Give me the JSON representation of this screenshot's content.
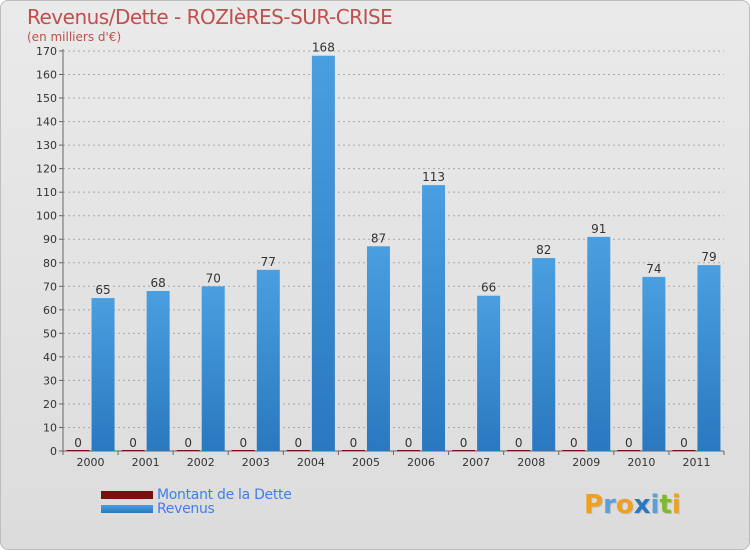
{
  "title": "Revenus/Dette - ROZIèRES-SUR-CRISE",
  "subtitle": "(en milliers d'€)",
  "logo": {
    "chars": [
      "P",
      "r",
      "o",
      "x",
      "i",
      "t",
      "i"
    ]
  },
  "colors": {
    "revenus": "#4a9fe0",
    "revenus_dark": "#2a78c0",
    "dette": "#7a0f0f",
    "axis": "#666666",
    "grid": "#a8a8a8",
    "logo": [
      "#f0a020",
      "#5aa0d8",
      "#f0a020",
      "#2a78c0",
      "#5aa0d8",
      "#80b830",
      "#f0a020"
    ]
  },
  "chart_data": {
    "type": "bar",
    "title": "Revenus/Dette - ROZIèRES-SUR-CRISE",
    "ylabel": "(en milliers d'€)",
    "xlabel": "",
    "ylim": [
      0,
      170
    ],
    "ytick_step": 10,
    "grid": true,
    "legend_position": "bottom-left",
    "categories": [
      "2000",
      "2001",
      "2002",
      "2003",
      "2004",
      "2005",
      "2006",
      "2007",
      "2008",
      "2009",
      "2010",
      "2011"
    ],
    "series": [
      {
        "name": "Montant de la Dette",
        "values": [
          0,
          0,
          0,
          0,
          0,
          0,
          0,
          0,
          0,
          0,
          0,
          0
        ]
      },
      {
        "name": "Revenus",
        "values": [
          65,
          68,
          70,
          77,
          168,
          87,
          113,
          66,
          82,
          91,
          74,
          79
        ]
      }
    ]
  }
}
